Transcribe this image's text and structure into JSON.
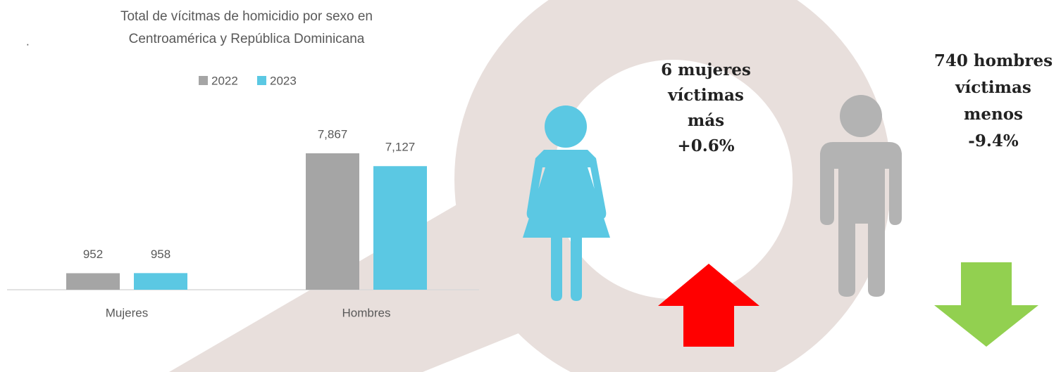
{
  "chart_data": {
    "type": "bar",
    "title": "Total de vícitmas de homicidio por sexo en Centroamérica y República Dominicana",
    "categories": [
      "Mujeres",
      "Hombres"
    ],
    "series": [
      {
        "name": "2022",
        "color": "#a5a5a5",
        "values": [
          952,
          7867
        ],
        "value_labels": [
          "952",
          "7,867"
        ]
      },
      {
        "name": "2023",
        "color": "#5bc8e3",
        "values": [
          958,
          7127
        ],
        "value_labels": [
          "958",
          "7,127"
        ]
      }
    ]
  },
  "note": ".",
  "callouts": [
    {
      "lines": [
        "6 mujeres",
        "víctimas",
        "más",
        "+0.6%"
      ]
    },
    {
      "lines": [
        "740 hombres",
        "víctimas",
        "menos",
        "-9.4%"
      ]
    }
  ]
}
